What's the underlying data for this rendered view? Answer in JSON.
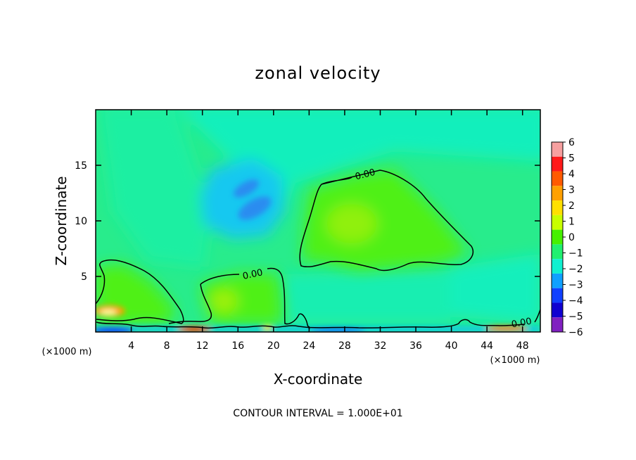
{
  "chart_data": {
    "type": "heatmap",
    "title": "zonal velocity",
    "xlabel": "X-coordinate",
    "ylabel": "Z-coordinate",
    "x_unit": "(×1000 m)",
    "x_unit_right": "(×1000 m)",
    "xlim": [
      0,
      50
    ],
    "ylim": [
      0,
      20
    ],
    "x_ticks": [
      "4",
      "8",
      "12",
      "16",
      "20",
      "24",
      "28",
      "32",
      "36",
      "40",
      "44",
      "48"
    ],
    "y_ticks": [
      "5",
      "10",
      "15"
    ],
    "contour_interval_text": "CONTOUR INTERVAL = 1.000E+01",
    "contour_labels": [
      "0.00",
      "0.00",
      "0.00"
    ],
    "colorbar": {
      "levels": [
        "6",
        "5",
        "4",
        "3",
        "2",
        "1",
        "0",
        "−1",
        "−2",
        "−3",
        "−4",
        "−5",
        "−6"
      ],
      "colors": [
        "#f7a0a0",
        "#ff1a1a",
        "#ff5a00",
        "#ffa000",
        "#ffe000",
        "#c8ff00",
        "#46f000",
        "#20f070",
        "#10f0d0",
        "#10a0ff",
        "#1040ff",
        "#1000d0",
        "#8020c0"
      ]
    },
    "field_features": [
      {
        "kind": "min",
        "x": 18,
        "z": 12,
        "value": -3
      },
      {
        "kind": "min",
        "x": 17,
        "z": 13.2,
        "value": -3
      },
      {
        "kind": "max",
        "x": 29,
        "z": 10,
        "value": 1
      },
      {
        "kind": "max",
        "x": 15,
        "z": 3,
        "value": 1
      },
      {
        "kind": "max",
        "x": 2,
        "z": 2,
        "value": 3
      },
      {
        "kind": "max",
        "x": 10.5,
        "z": 0.3,
        "value": 4
      },
      {
        "kind": "min",
        "x": 1.5,
        "z": 0.4,
        "value": -4
      },
      {
        "kind": "min",
        "x": 30,
        "z": 0.2,
        "value": -3
      }
    ]
  }
}
